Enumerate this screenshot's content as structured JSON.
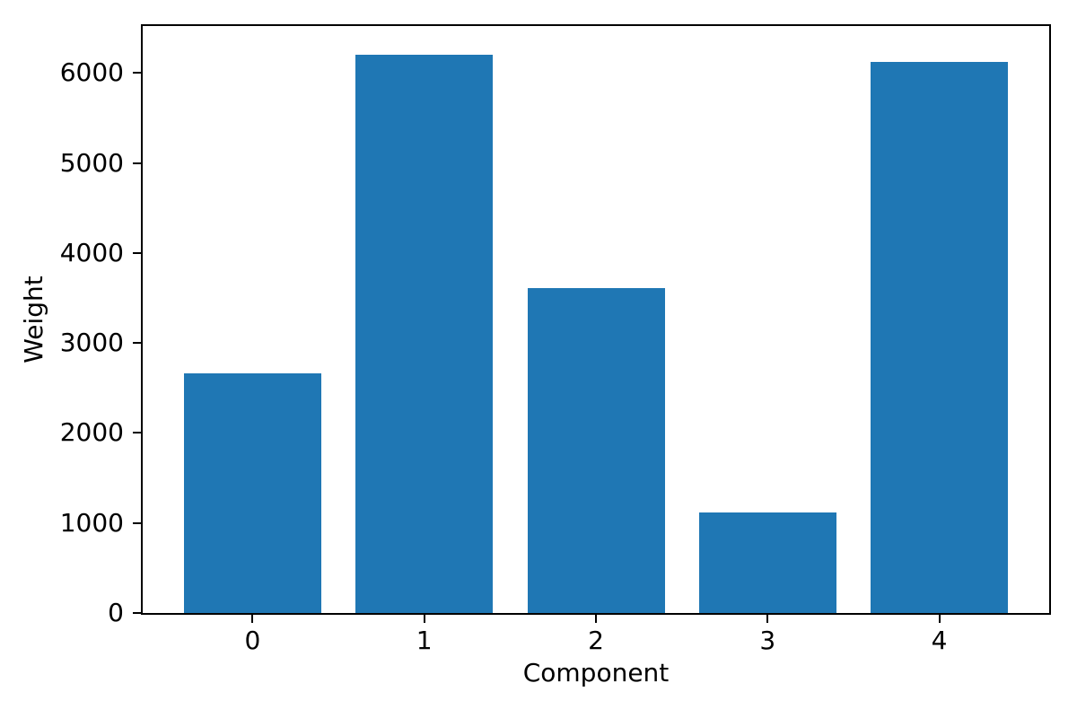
{
  "chart_data": {
    "type": "bar",
    "xlabel": "Component",
    "ylabel": "Weight",
    "categories": [
      "0",
      "1",
      "2",
      "3",
      "4"
    ],
    "values": [
      2660,
      6200,
      3610,
      1115,
      6120
    ],
    "ytick_values": [
      0,
      1000,
      2000,
      3000,
      4000,
      5000,
      6000
    ],
    "ytick_labels": [
      "0",
      "1000",
      "2000",
      "3000",
      "4000",
      "5000",
      "6000"
    ],
    "ylim": [
      0,
      6520
    ],
    "xlim": [
      -0.64,
      4.64
    ],
    "bar_width": 0.8,
    "bar_color": "#1f77b4",
    "axis_color": "#000000",
    "background_color": "#ffffff",
    "grid": false,
    "legend": false
  }
}
